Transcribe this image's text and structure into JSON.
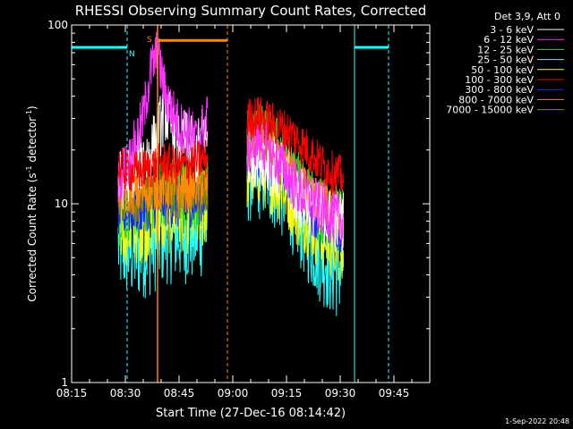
{
  "chart_data": {
    "type": "line",
    "title": "RHESSI Observing Summary Count Rates, Corrected",
    "xlabel": "Start Time (27-Dec-16 08:14:42)",
    "ylabel_main": "Corrected Count Rate (s",
    "ylabel_sup1": "-1",
    "ylabel_mid": " detector",
    "ylabel_sup2": "-1",
    "ylabel_end": ")",
    "yscale": "log",
    "ylim": [
      1,
      100
    ],
    "y_ticks": [
      {
        "v": 1,
        "label": "1"
      },
      {
        "v": 10,
        "label": "10"
      },
      {
        "v": 100,
        "label": "100"
      }
    ],
    "xlim_min": [
      0,
      100
    ],
    "x_ticks": [
      {
        "v": 0,
        "label": "08:15"
      },
      {
        "v": 15,
        "label": "08:30"
      },
      {
        "v": 30,
        "label": "08:45"
      },
      {
        "v": 45,
        "label": "09:00"
      },
      {
        "v": 60,
        "label": "09:15"
      },
      {
        "v": 75,
        "label": "09:30"
      },
      {
        "v": 90,
        "label": "09:45"
      }
    ],
    "legend_title": "Det 3,9, Att 0",
    "legend_position": "top-right",
    "series": [
      {
        "name": "3 - 6 keV",
        "color": "#ffffff",
        "seg1": [
          [
            13,
            13
          ],
          [
            18,
            17
          ],
          [
            22,
            19
          ],
          [
            25,
            28
          ],
          [
            26,
            34
          ],
          [
            28,
            27
          ],
          [
            29,
            22
          ],
          [
            31,
            23
          ],
          [
            33,
            21
          ],
          [
            35,
            19
          ],
          [
            37,
            26
          ],
          [
            38,
            23
          ]
        ],
        "seg2": [
          [
            49,
            17
          ],
          [
            52,
            19
          ],
          [
            55,
            17
          ],
          [
            58,
            15
          ],
          [
            61,
            13
          ],
          [
            63,
            11
          ],
          [
            66,
            10
          ],
          [
            68,
            9
          ],
          [
            71,
            8.5
          ],
          [
            73,
            8
          ],
          [
            76,
            8
          ]
        ],
        "noise": 0.18
      },
      {
        "name": "6 - 12 keV",
        "color": "#ff33ff",
        "seg1": [
          [
            13,
            14
          ],
          [
            16,
            17
          ],
          [
            20,
            30
          ],
          [
            22,
            55
          ],
          [
            23,
            62
          ],
          [
            24,
            70
          ],
          [
            26,
            42
          ],
          [
            28,
            33
          ],
          [
            30,
            27
          ],
          [
            33,
            25
          ],
          [
            35,
            22
          ],
          [
            37,
            28
          ],
          [
            38,
            30
          ]
        ],
        "seg2": [
          [
            49,
            20
          ],
          [
            52,
            23
          ],
          [
            55,
            20
          ],
          [
            58,
            17
          ],
          [
            61,
            14
          ],
          [
            63,
            12
          ],
          [
            66,
            11
          ],
          [
            68,
            10
          ],
          [
            71,
            9
          ],
          [
            73,
            8.5
          ],
          [
            76,
            8
          ]
        ],
        "noise": 0.15
      },
      {
        "name": "12 - 25 keV",
        "color": "#22dd22",
        "seg1": [
          [
            13,
            9
          ],
          [
            17,
            10
          ],
          [
            22,
            11
          ],
          [
            26,
            12
          ],
          [
            30,
            12
          ],
          [
            34,
            11
          ],
          [
            38,
            12
          ]
        ],
        "seg2": [
          [
            49,
            22
          ],
          [
            52,
            24
          ],
          [
            55,
            22
          ],
          [
            58,
            19
          ],
          [
            61,
            15
          ],
          [
            63,
            13
          ],
          [
            66,
            11
          ],
          [
            68,
            10
          ],
          [
            71,
            9
          ],
          [
            73,
            8.5
          ],
          [
            76,
            8
          ]
        ],
        "noise": 0.2
      },
      {
        "name": "25 - 50 keV",
        "color": "#22ffff",
        "seg1": [
          [
            13,
            6
          ],
          [
            17,
            5.5
          ],
          [
            22,
            6
          ],
          [
            26,
            7
          ],
          [
            30,
            7
          ],
          [
            34,
            7
          ],
          [
            38,
            8
          ]
        ],
        "seg2": [
          [
            49,
            15
          ],
          [
            52,
            16
          ],
          [
            55,
            15
          ],
          [
            58,
            13
          ],
          [
            61,
            11
          ],
          [
            63,
            9
          ],
          [
            66,
            7
          ],
          [
            68,
            6
          ],
          [
            71,
            5
          ],
          [
            73,
            4.5
          ],
          [
            76,
            4.5
          ]
        ],
        "noise": 0.3
      },
      {
        "name": "50 - 100 keV",
        "color": "#ffff00",
        "seg1": [
          [
            13,
            8
          ],
          [
            18,
            8
          ],
          [
            22,
            8.5
          ],
          [
            26,
            9
          ],
          [
            30,
            9.5
          ],
          [
            34,
            9
          ],
          [
            38,
            10
          ]
        ],
        "seg2": [
          [
            49,
            16
          ],
          [
            52,
            17
          ],
          [
            55,
            16
          ],
          [
            58,
            14
          ],
          [
            61,
            12
          ],
          [
            63,
            10
          ],
          [
            66,
            9
          ],
          [
            68,
            8
          ],
          [
            71,
            7
          ],
          [
            73,
            6.5
          ],
          [
            76,
            6.5
          ]
        ],
        "noise": 0.25
      },
      {
        "name": "100 - 300 keV",
        "color": "#ff0000",
        "seg1": [
          [
            13,
            16
          ],
          [
            17,
            15
          ],
          [
            22,
            16
          ],
          [
            26,
            17
          ],
          [
            30,
            16
          ],
          [
            34,
            17
          ],
          [
            38,
            18
          ]
        ],
        "seg2": [
          [
            49,
            30
          ],
          [
            52,
            31
          ],
          [
            55,
            29
          ],
          [
            58,
            27
          ],
          [
            61,
            25
          ],
          [
            63,
            23
          ],
          [
            66,
            20
          ],
          [
            68,
            18
          ],
          [
            71,
            16
          ],
          [
            73,
            15
          ],
          [
            76,
            14
          ]
        ],
        "noise": 0.12
      },
      {
        "name": "300 - 800 keV",
        "color": "#2222ff",
        "seg1": [
          [
            13,
            9
          ],
          [
            17,
            9.5
          ],
          [
            22,
            10
          ],
          [
            26,
            10.5
          ],
          [
            30,
            10
          ],
          [
            34,
            10.5
          ],
          [
            38,
            11
          ]
        ],
        "seg2": [
          [
            49,
            18
          ],
          [
            52,
            19
          ],
          [
            55,
            18
          ],
          [
            58,
            16
          ],
          [
            61,
            14
          ],
          [
            63,
            12
          ],
          [
            66,
            10
          ],
          [
            68,
            9
          ],
          [
            71,
            8
          ],
          [
            73,
            7.5
          ],
          [
            76,
            7.5
          ]
        ],
        "noise": 0.15
      },
      {
        "name": "800 - 7000 keV",
        "color": "#ff8800",
        "seg1": [
          [
            13,
            12
          ],
          [
            17,
            11.5
          ],
          [
            22,
            12
          ],
          [
            26,
            12.5
          ],
          [
            30,
            12
          ],
          [
            34,
            12.5
          ],
          [
            38,
            13
          ]
        ],
        "seg2": [
          [
            49,
            20
          ],
          [
            52,
            21
          ],
          [
            55,
            20
          ],
          [
            58,
            18
          ],
          [
            61,
            16
          ],
          [
            63,
            14
          ],
          [
            66,
            12
          ],
          [
            68,
            11
          ],
          [
            71,
            10
          ],
          [
            73,
            9
          ],
          [
            76,
            9
          ]
        ],
        "noise": 0.13
      },
      {
        "name": "7000 - 15000 keV",
        "color": "#888800",
        "seg1": [
          [
            13,
            11
          ],
          [
            17,
            10.5
          ],
          [
            22,
            11
          ],
          [
            26,
            11.5
          ],
          [
            30,
            11
          ],
          [
            34,
            11.5
          ],
          [
            38,
            12
          ]
        ],
        "seg2": [
          [
            49,
            19
          ],
          [
            52,
            20
          ],
          [
            55,
            19
          ],
          [
            58,
            17
          ],
          [
            61,
            15
          ],
          [
            63,
            13
          ],
          [
            66,
            11
          ],
          [
            68,
            10
          ],
          [
            71,
            9
          ],
          [
            73,
            8.5
          ],
          [
            76,
            8.5
          ]
        ],
        "noise": 0.13
      }
    ],
    "annotations": {
      "flag_n": "N",
      "flag_s": "S",
      "night_bars": [
        [
          0,
          15.5
        ],
        [
          79,
          88.5
        ]
      ],
      "night_level": 75,
      "saa_bar": [
        24,
        43.5
      ],
      "saa_level": 82,
      "night_lines_solid": [
        0,
        79
      ],
      "night_lines_dashed": [
        15.5,
        88.5
      ],
      "saa_line_solid": 24,
      "saa_line_dashed": 43.5
    },
    "footer_date": "1-Sep-2022 20:48"
  }
}
